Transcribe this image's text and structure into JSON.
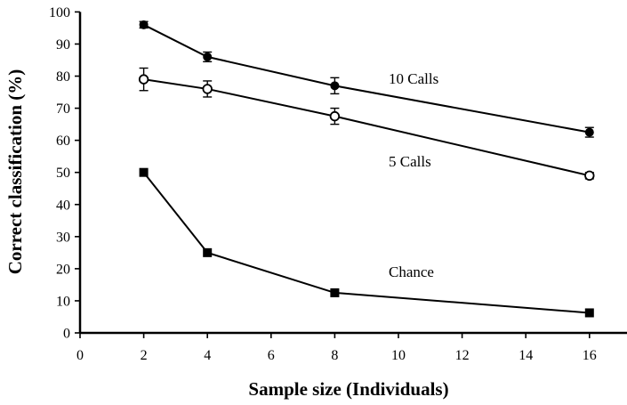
{
  "chart_data": {
    "type": "line",
    "xlabel": "Sample size (Individuals)",
    "ylabel": "Correct classification (%)",
    "xlim": [
      0,
      17
    ],
    "ylim": [
      0,
      100
    ],
    "xticks": [
      "0",
      "2",
      "4",
      "6",
      "8",
      "10",
      "12",
      "14",
      "16"
    ],
    "yticks": [
      "0",
      "10",
      "20",
      "30",
      "40",
      "50",
      "60",
      "70",
      "80",
      "90",
      "100"
    ],
    "x": [
      2,
      4,
      8,
      16
    ],
    "grid": false,
    "legend": "none (series labeled inline)",
    "series": [
      {
        "name": "10 Calls",
        "marker": "filled-circle",
        "values": [
          96,
          86,
          77,
          62.5
        ],
        "errors": [
          1,
          1.5,
          2.5,
          1.5
        ]
      },
      {
        "name": "5 Calls",
        "marker": "open-circle",
        "values": [
          79,
          76,
          67.5,
          49
        ],
        "errors": [
          3.5,
          2.5,
          2.5,
          1
        ]
      },
      {
        "name": "Chance",
        "marker": "filled-square",
        "values": [
          50,
          25,
          12.5,
          6.25
        ],
        "errors": []
      }
    ]
  }
}
